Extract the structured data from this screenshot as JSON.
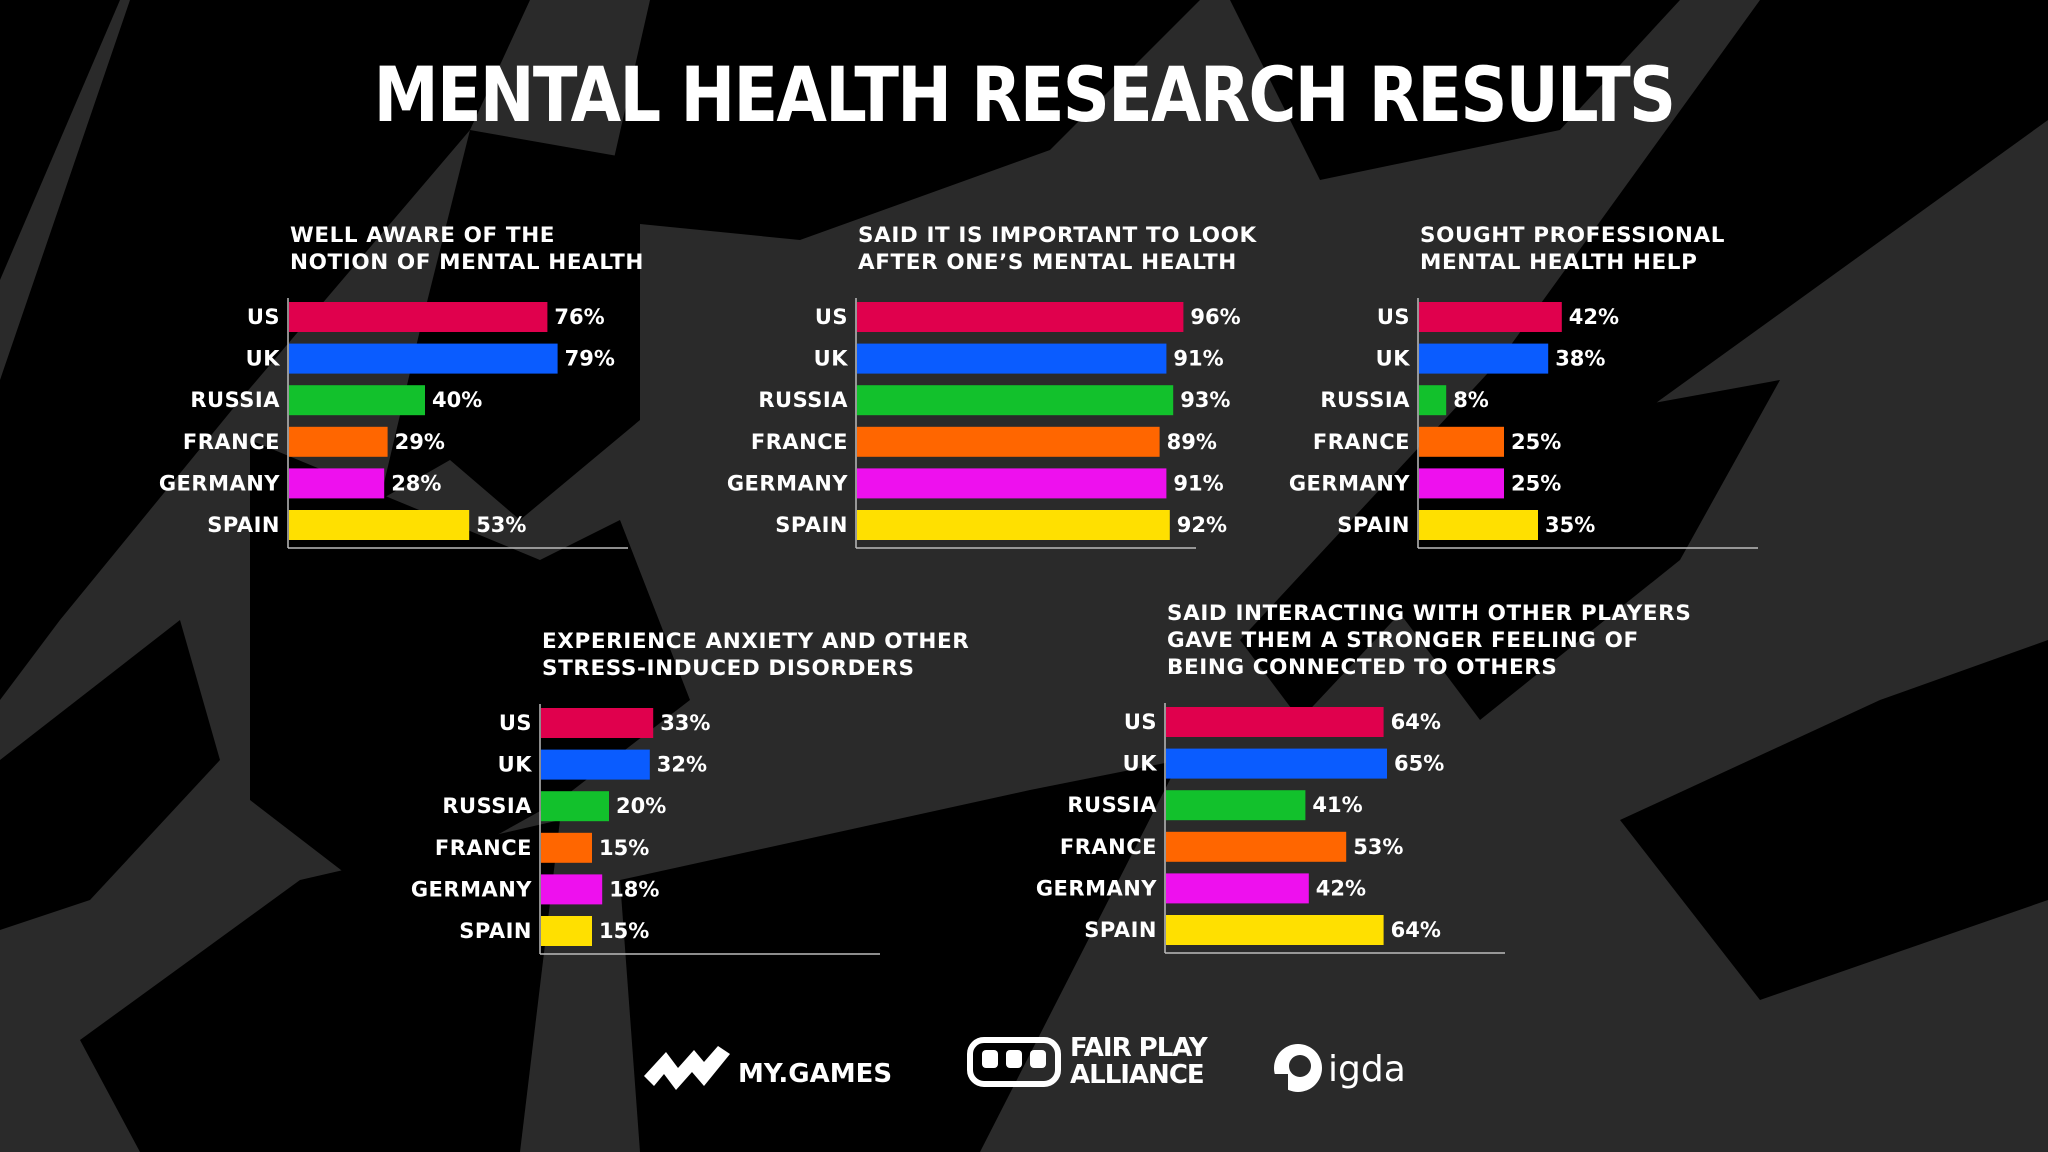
{
  "title": "MENTAL HEALTH RESEARCH RESULTS",
  "colors": {
    "background": "#2a2a2a",
    "shapes": "#000000",
    "US": "#e0004d",
    "UK": "#0a5cff",
    "RUSSIA": "#12c12c",
    "FRANCE": "#ff6600",
    "GERMANY": "#ee10ee",
    "SPAIN": "#ffe000"
  },
  "chart_data": [
    {
      "type": "bar",
      "orientation": "horizontal",
      "title_lines": [
        "WELL AWARE OF THE",
        "NOTION OF MENTAL HEALTH"
      ],
      "categories": [
        "US",
        "UK",
        "RUSSIA",
        "FRANCE",
        "GERMANY",
        "SPAIN"
      ],
      "values": [
        76,
        79,
        40,
        29,
        28,
        53
      ],
      "value_labels": [
        "76%",
        "79%",
        "40%",
        "29%",
        "28%",
        "53%"
      ],
      "xlim": [
        0,
        100
      ]
    },
    {
      "type": "bar",
      "orientation": "horizontal",
      "title_lines": [
        "SAID IT IS IMPORTANT TO LOOK",
        "AFTER ONE’S MENTAL HEALTH"
      ],
      "categories": [
        "US",
        "UK",
        "RUSSIA",
        "FRANCE",
        "GERMANY",
        "SPAIN"
      ],
      "values": [
        96,
        91,
        93,
        89,
        91,
        92
      ],
      "value_labels": [
        "96%",
        "91%",
        "93%",
        "89%",
        "91%",
        "92%"
      ],
      "xlim": [
        0,
        100
      ]
    },
    {
      "type": "bar",
      "orientation": "horizontal",
      "title_lines": [
        "SOUGHT PROFESSIONAL",
        "MENTAL HEALTH HELP"
      ],
      "categories": [
        "US",
        "UK",
        "RUSSIA",
        "FRANCE",
        "GERMANY",
        "SPAIN"
      ],
      "values": [
        42,
        38,
        8,
        25,
        25,
        35
      ],
      "value_labels": [
        "42%",
        "38%",
        "8%",
        "25%",
        "25%",
        "35%"
      ],
      "xlim": [
        0,
        100
      ]
    },
    {
      "type": "bar",
      "orientation": "horizontal",
      "title_lines": [
        "EXPERIENCE ANXIETY AND OTHER",
        "STRESS-INDUCED DISORDERS"
      ],
      "categories": [
        "US",
        "UK",
        "RUSSIA",
        "FRANCE",
        "GERMANY",
        "SPAIN"
      ],
      "values": [
        33,
        32,
        20,
        15,
        18,
        15
      ],
      "value_labels": [
        "33%",
        "32%",
        "20%",
        "15%",
        "18%",
        "15%"
      ],
      "xlim": [
        0,
        100
      ]
    },
    {
      "type": "bar",
      "orientation": "horizontal",
      "title_lines": [
        "SAID INTERACTING WITH OTHER PLAYERS",
        "GAVE THEM A STRONGER FEELING OF",
        "BEING CONNECTED TO OTHERS"
      ],
      "categories": [
        "US",
        "UK",
        "RUSSIA",
        "FRANCE",
        "GERMANY",
        "SPAIN"
      ],
      "values": [
        64,
        65,
        41,
        53,
        42,
        64
      ],
      "value_labels": [
        "64%",
        "65%",
        "41%",
        "53%",
        "42%",
        "64%"
      ],
      "xlim": [
        0,
        100
      ]
    }
  ],
  "logos": [
    {
      "name": "MY.GAMES",
      "icon": "my-games-icon",
      "text": "MY.GAMES"
    },
    {
      "name": "FAIR PLAY ALLIANCE",
      "icon": "fair-play-alliance-icon",
      "text_lines": [
        "FAIR PLAY",
        "ALLIANCE"
      ]
    },
    {
      "name": "igda",
      "icon": "igda-icon",
      "text": "igda"
    }
  ]
}
